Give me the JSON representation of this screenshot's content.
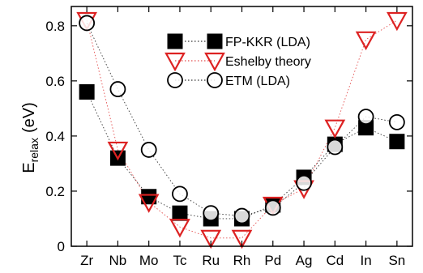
{
  "chart_data": {
    "type": "scatter",
    "categories": [
      "Zr",
      "Nb",
      "Mo",
      "Tc",
      "Ru",
      "Rh",
      "Pd",
      "Ag",
      "Cd",
      "In",
      "Sn"
    ],
    "ylabel": "E_relax (eV)",
    "ylabel_main": "E",
    "ylabel_sub": "relax",
    "ylabel_unit": "(eV)",
    "ylim": [
      0,
      0.87
    ],
    "yticks": [
      0,
      0.2,
      0.4,
      0.6,
      0.8
    ],
    "ytick_labels": [
      "0",
      "0.2",
      "0.4",
      "0.6",
      "0.8"
    ],
    "grid": false,
    "legend_position": "top-center",
    "series": [
      {
        "name": "FP-KKR (LDA)",
        "marker": "filled-square",
        "color": "#000000",
        "connected": true,
        "values": [
          0.56,
          0.32,
          0.18,
          0.12,
          0.1,
          0.1,
          0.15,
          0.25,
          0.37,
          0.43,
          0.38
        ]
      },
      {
        "name": "Eshelby theory",
        "marker": "open-down-triangle",
        "color": "#dd2222",
        "connected": true,
        "values": [
          0.82,
          0.35,
          0.16,
          0.07,
          0.03,
          0.03,
          0.15,
          0.21,
          0.43,
          0.75,
          0.82
        ]
      },
      {
        "name": "ETM (LDA)",
        "marker": "open-circle",
        "color": "#000000",
        "connected": true,
        "values": [
          0.81,
          0.57,
          0.35,
          0.19,
          0.12,
          0.11,
          0.14,
          0.23,
          0.36,
          0.47,
          0.45
        ]
      }
    ]
  }
}
